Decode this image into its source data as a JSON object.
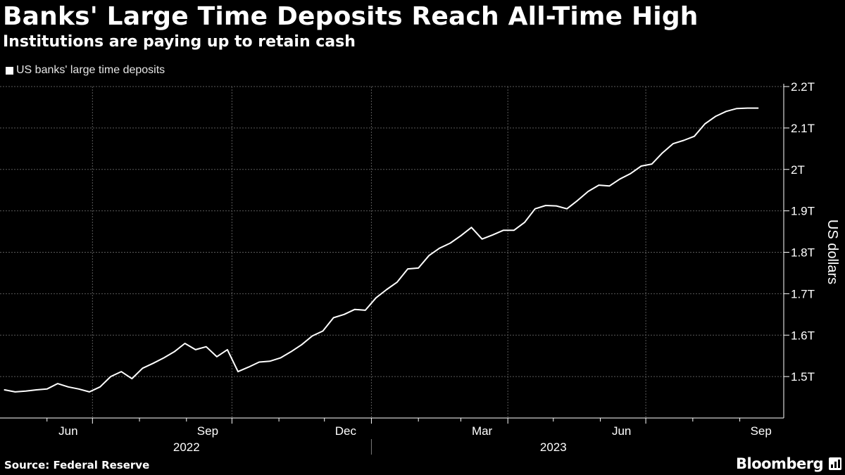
{
  "header": {
    "title": "Banks' Large Time Deposits Reach All-Time High",
    "subtitle": "Institutions are paying up to retain cash"
  },
  "legend": {
    "label": "US banks' large time deposits"
  },
  "footer": {
    "source": "Source: Federal Reserve",
    "brand": "Bloomberg",
    "brand_icon": "chart-icon"
  },
  "colors": {
    "background": "#000000",
    "line": "#ffffff",
    "grid": "#5a5a5a",
    "text": "#ffffff"
  },
  "chart_data": {
    "type": "line",
    "ylabel": "US dollars",
    "ylim": [
      1.4,
      2.2
    ],
    "y_ticks": [
      {
        "value": 1.5,
        "label": "1.5T"
      },
      {
        "value": 1.6,
        "label": "1.6T"
      },
      {
        "value": 1.7,
        "label": "1.7T"
      },
      {
        "value": 1.8,
        "label": "1.8T"
      },
      {
        "value": 1.9,
        "label": "1.9T"
      },
      {
        "value": 2.0,
        "label": "2T"
      },
      {
        "value": 2.1,
        "label": "2.1T"
      },
      {
        "value": 2.2,
        "label": "2.2T"
      }
    ],
    "xlim": [
      "2022-05-01",
      "2023-09-30"
    ],
    "x_ticks": [
      {
        "date": "2022-06-15",
        "label": "Jun"
      },
      {
        "date": "2022-09-15",
        "label": "Sep"
      },
      {
        "date": "2022-12-15",
        "label": "Dec"
      },
      {
        "date": "2023-03-15",
        "label": "Mar"
      },
      {
        "date": "2023-06-15",
        "label": "Jun"
      },
      {
        "date": "2023-09-15",
        "label": "Sep"
      }
    ],
    "month_starts": [
      "2022-06-01",
      "2022-07-01",
      "2022-08-01",
      "2022-09-01",
      "2022-10-01",
      "2022-11-01",
      "2022-12-01",
      "2023-01-01",
      "2023-02-01",
      "2023-03-01",
      "2023-04-01",
      "2023-05-01",
      "2023-06-01",
      "2023-07-01",
      "2023-08-01",
      "2023-09-01"
    ],
    "gridlines_x": [
      "2022-07-01",
      "2022-10-01",
      "2023-01-01",
      "2023-04-01",
      "2023-07-01"
    ],
    "year_labels": [
      {
        "label": "2022",
        "date": "2022-09-01"
      },
      {
        "label": "2023",
        "date": "2023-05-01"
      }
    ],
    "year_divider": "2023-01-01",
    "grid": true,
    "legend_position": "top-left",
    "series": [
      {
        "name": "US banks' large time deposits",
        "x": [
          "2022-05-04",
          "2022-05-11",
          "2022-05-18",
          "2022-05-25",
          "2022-06-01",
          "2022-06-08",
          "2022-06-15",
          "2022-06-22",
          "2022-06-29",
          "2022-07-06",
          "2022-07-13",
          "2022-07-20",
          "2022-07-27",
          "2022-08-03",
          "2022-08-10",
          "2022-08-17",
          "2022-08-24",
          "2022-08-31",
          "2022-09-07",
          "2022-09-14",
          "2022-09-21",
          "2022-09-28",
          "2022-10-05",
          "2022-10-12",
          "2022-10-19",
          "2022-10-26",
          "2022-11-02",
          "2022-11-09",
          "2022-11-16",
          "2022-11-23",
          "2022-11-30",
          "2022-12-07",
          "2022-12-14",
          "2022-12-21",
          "2022-12-28",
          "2023-01-04",
          "2023-01-11",
          "2023-01-18",
          "2023-01-25",
          "2023-02-01",
          "2023-02-08",
          "2023-02-15",
          "2023-02-22",
          "2023-03-01",
          "2023-03-08",
          "2023-03-15",
          "2023-03-22",
          "2023-03-29",
          "2023-04-05",
          "2023-04-12",
          "2023-04-19",
          "2023-04-26",
          "2023-05-03",
          "2023-05-10",
          "2023-05-17",
          "2023-05-24",
          "2023-05-31",
          "2023-06-07",
          "2023-06-14",
          "2023-06-21",
          "2023-06-28",
          "2023-07-05",
          "2023-07-12",
          "2023-07-19",
          "2023-07-26",
          "2023-08-02",
          "2023-08-09",
          "2023-08-16",
          "2023-08-23",
          "2023-08-30",
          "2023-09-06",
          "2023-09-13"
        ],
        "values": [
          1.468,
          1.463,
          1.465,
          1.468,
          1.47,
          1.483,
          1.475,
          1.47,
          1.463,
          1.475,
          1.5,
          1.512,
          1.495,
          1.52,
          1.532,
          1.545,
          1.56,
          1.58,
          1.565,
          1.572,
          1.548,
          1.565,
          1.512,
          1.523,
          1.535,
          1.537,
          1.545,
          1.56,
          1.577,
          1.598,
          1.61,
          1.642,
          1.65,
          1.662,
          1.66,
          1.69,
          1.71,
          1.728,
          1.76,
          1.762,
          1.792,
          1.81,
          1.822,
          1.84,
          1.86,
          1.832,
          1.842,
          1.853,
          1.853,
          1.872,
          1.905,
          1.913,
          1.912,
          1.905,
          1.925,
          1.947,
          1.962,
          1.96,
          1.977,
          1.99,
          2.008,
          2.013,
          2.04,
          2.062,
          2.07,
          2.08,
          2.11,
          2.128,
          2.14,
          2.147,
          2.148,
          2.148
        ]
      }
    ]
  }
}
